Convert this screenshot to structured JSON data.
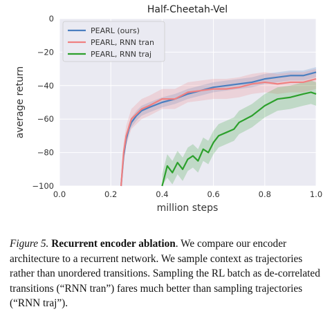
{
  "figure": {
    "caption": {
      "label": "Figure 5.",
      "title": "Recurrent encoder ablation",
      "body": ". We compare our encoder architecture to a recurrent network. We sample context as trajectories rather than unordered transitions. Sampling the RL batch as de-correlated transitions (“RNN tran”) fares much better than sampling trajectories (“RNN traj”)."
    }
  },
  "chart_data": {
    "type": "line",
    "title": "Half-Cheetah-Vel",
    "xlabel": "million steps",
    "ylabel": "average return",
    "xlim": [
      0.0,
      1.0
    ],
    "ylim": [
      -100,
      0
    ],
    "xticks": [
      0.0,
      0.2,
      0.4,
      0.6,
      0.8,
      1.0
    ],
    "yticks": [
      0,
      -20,
      -40,
      -60,
      -80,
      -100
    ],
    "grid": true,
    "legend_position": "top-left",
    "background": "#eaeaf2",
    "series": [
      {
        "name": "PEARL (ours)",
        "color": "#4a7fc0",
        "x": [
          0.24,
          0.25,
          0.26,
          0.27,
          0.28,
          0.3,
          0.32,
          0.35,
          0.4,
          0.45,
          0.5,
          0.55,
          0.6,
          0.65,
          0.7,
          0.75,
          0.8,
          0.85,
          0.9,
          0.95,
          1.0
        ],
        "y": [
          -100,
          -82,
          -72,
          -66,
          -62,
          -58,
          -55,
          -53,
          -50,
          -48,
          -45,
          -43,
          -41,
          -40,
          -39,
          -38,
          -36,
          -35,
          -34,
          -34,
          -32
        ],
        "band": 3
      },
      {
        "name": "PEARL, RNN tran",
        "color": "#f08080",
        "x": [
          0.24,
          0.25,
          0.26,
          0.27,
          0.28,
          0.3,
          0.32,
          0.35,
          0.4,
          0.45,
          0.5,
          0.55,
          0.6,
          0.65,
          0.7,
          0.75,
          0.8,
          0.85,
          0.9,
          0.95,
          1.0
        ],
        "y": [
          -100,
          -80,
          -70,
          -65,
          -60,
          -57,
          -54,
          -52,
          -48,
          -48,
          -44,
          -43,
          -42,
          -42,
          -41,
          -39,
          -38,
          -39,
          -38,
          -38,
          -36
        ],
        "band": 6
      },
      {
        "name": "PEARL, RNN traj",
        "color": "#2ca02c",
        "x": [
          0.4,
          0.42,
          0.44,
          0.46,
          0.48,
          0.5,
          0.52,
          0.54,
          0.56,
          0.58,
          0.6,
          0.62,
          0.65,
          0.68,
          0.7,
          0.75,
          0.8,
          0.85,
          0.9,
          0.95,
          0.98,
          1.0
        ],
        "y": [
          -100,
          -88,
          -92,
          -86,
          -90,
          -84,
          -82,
          -85,
          -78,
          -80,
          -74,
          -70,
          -68,
          -66,
          -62,
          -58,
          -52,
          -48,
          -47,
          -45,
          -44,
          -45
        ],
        "band": 7
      }
    ]
  }
}
